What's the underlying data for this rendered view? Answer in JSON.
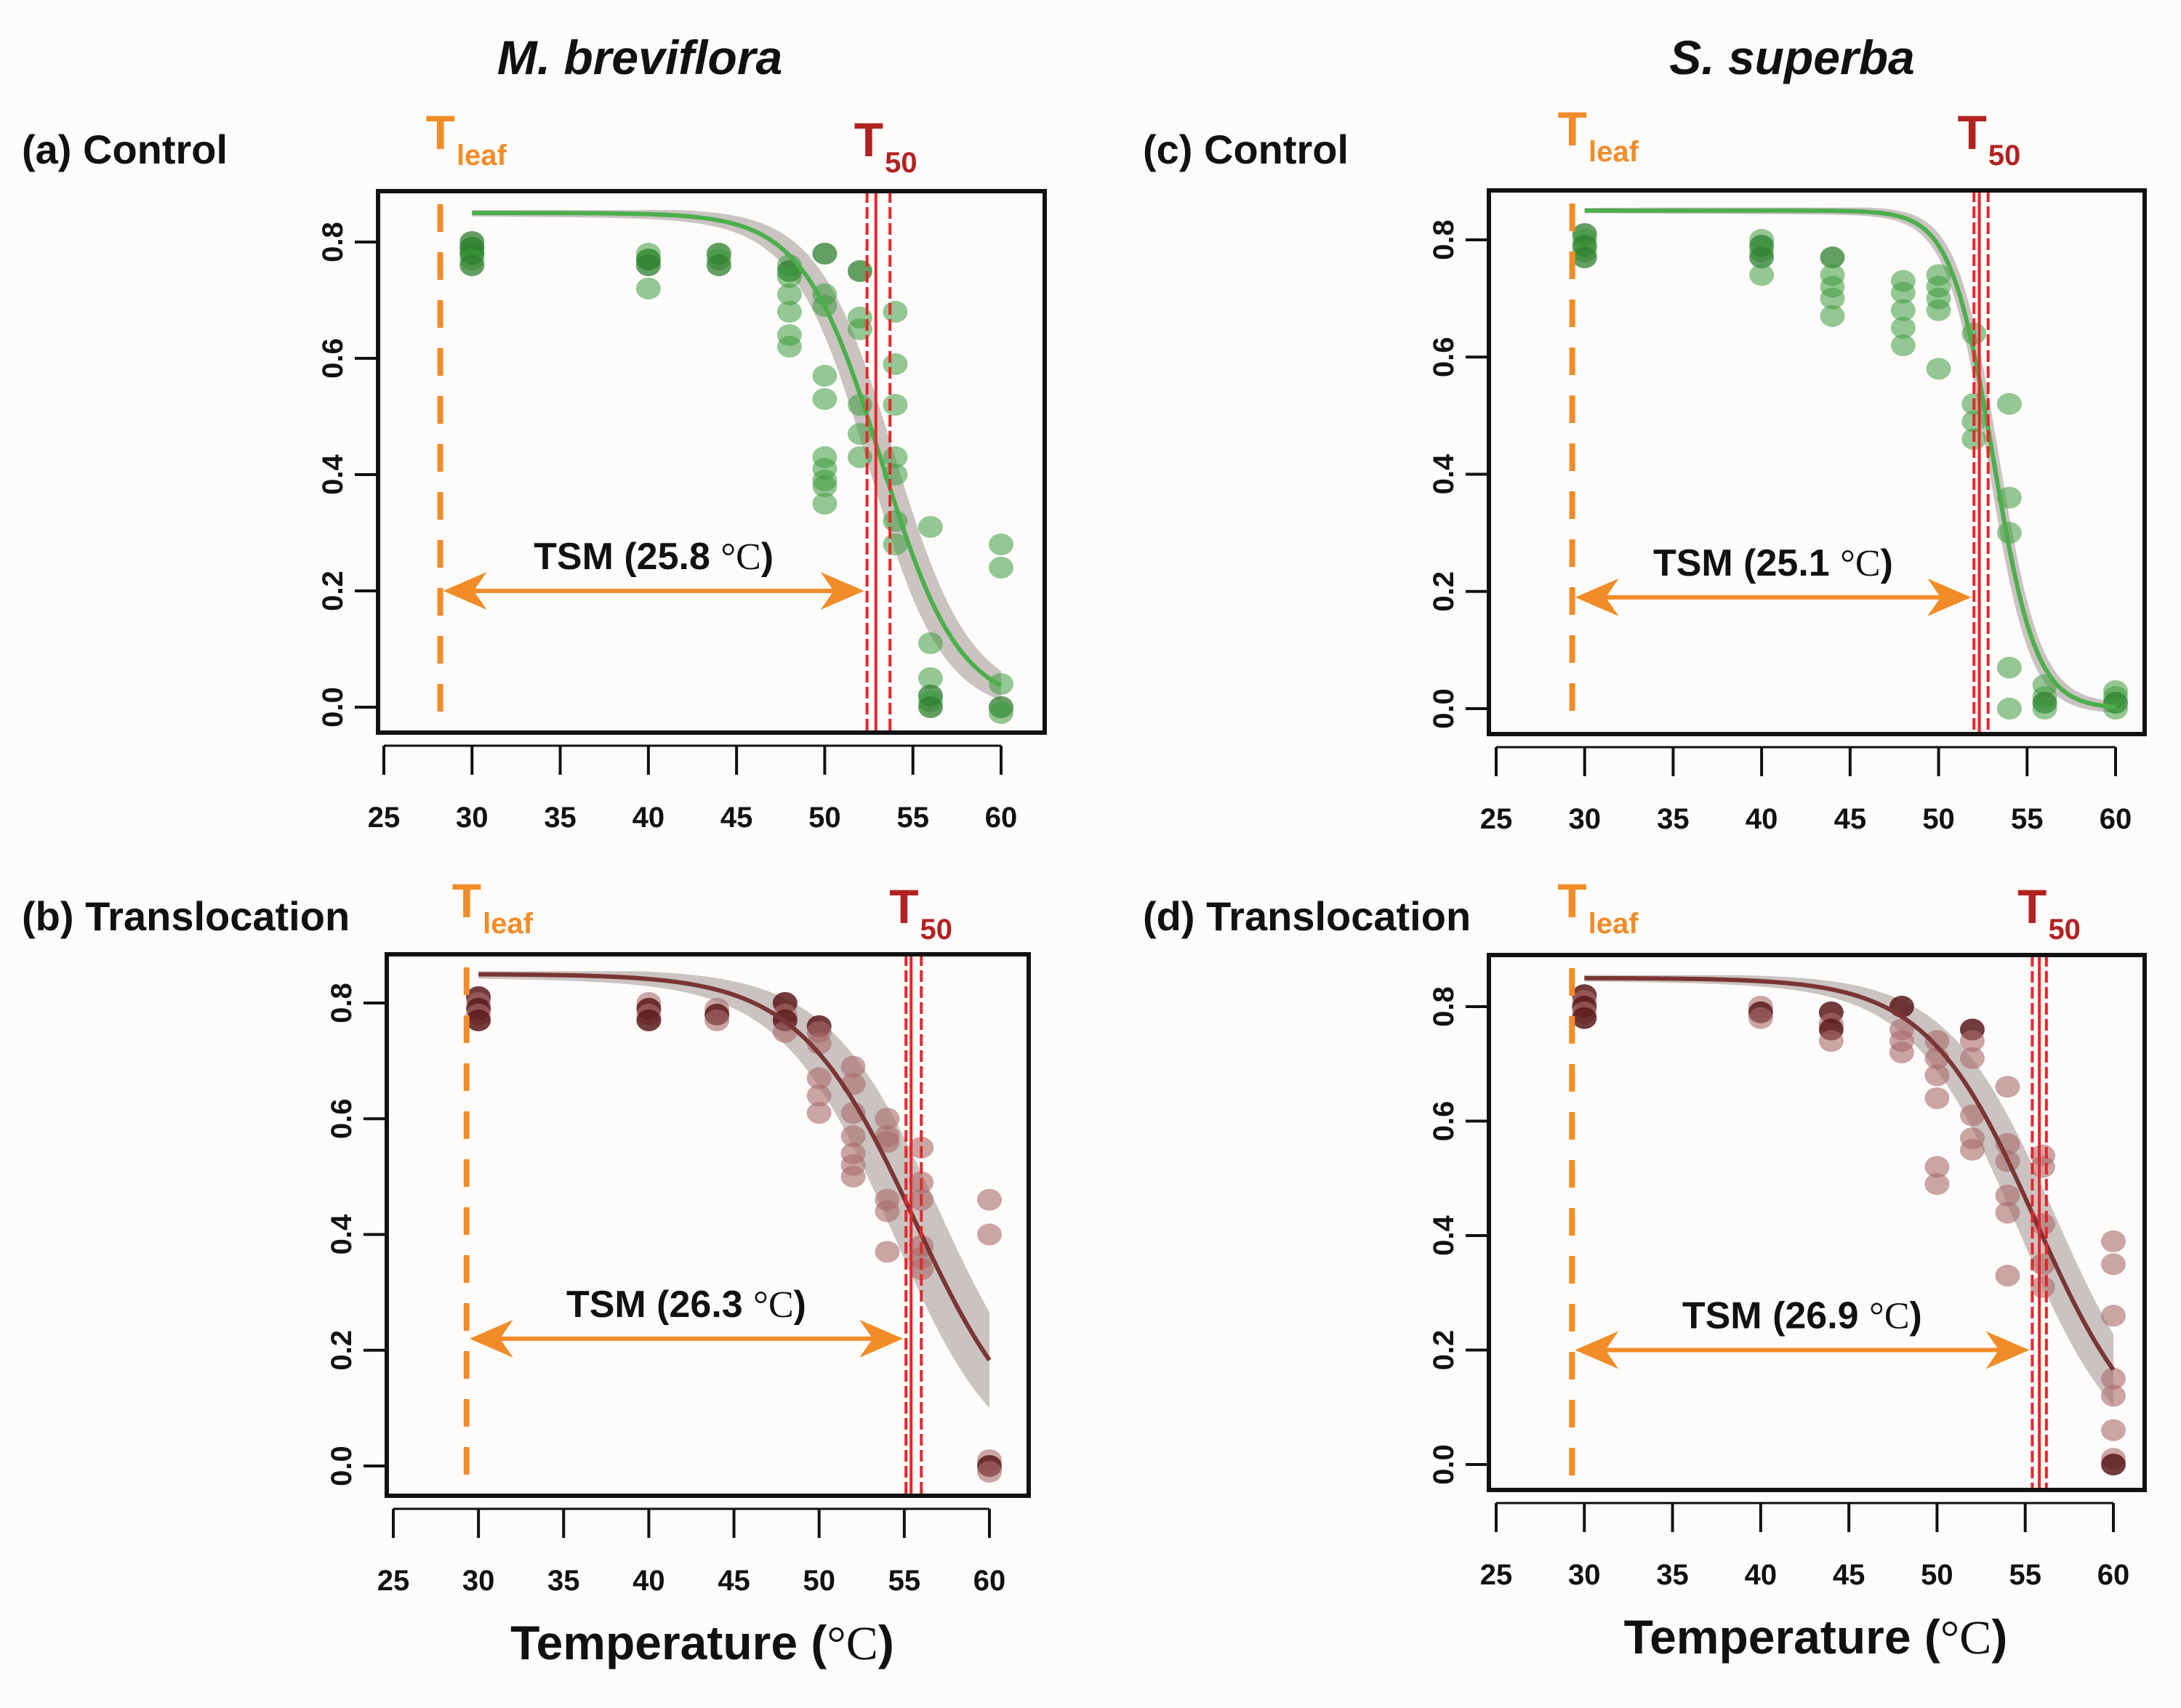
{
  "chart_data": [
    {
      "id": "a",
      "type": "scatter",
      "species": "M. breviflora",
      "panel_label": "(a) Control",
      "treatment": "Control",
      "xlabel": "",
      "ylabel": "",
      "xlim": [
        25,
        62
      ],
      "ylim": [
        -0.03,
        0.89
      ],
      "xticks": [
        25,
        30,
        35,
        40,
        45,
        50,
        55,
        60
      ],
      "yticks": [
        "0.0",
        "0.2",
        "0.4",
        "0.6",
        "0.8"
      ],
      "color_theme": "green",
      "t_leaf": 28.2,
      "t50": 52.9,
      "t50_ci": [
        52.4,
        53.7
      ],
      "tsm_label": "TSM (25.8 °C)",
      "tsm_value": 25.8,
      "tsm_arrow_y": 0.2,
      "curve": {
        "max": 0.85,
        "mid": 53.2,
        "scale": 2.2,
        "ci_width": 0.04
      },
      "points": [
        [
          30,
          0.8
        ],
        [
          30,
          0.79
        ],
        [
          30,
          0.79
        ],
        [
          30,
          0.78
        ],
        [
          30,
          0.78
        ],
        [
          30,
          0.77
        ],
        [
          30,
          0.76
        ],
        [
          40,
          0.78
        ],
        [
          40,
          0.77
        ],
        [
          40,
          0.77
        ],
        [
          40,
          0.76
        ],
        [
          40,
          0.72
        ],
        [
          44,
          0.78
        ],
        [
          44,
          0.77
        ],
        [
          44,
          0.76
        ],
        [
          48,
          0.76
        ],
        [
          48,
          0.75
        ],
        [
          48,
          0.74
        ],
        [
          48,
          0.71
        ],
        [
          48,
          0.68
        ],
        [
          48,
          0.64
        ],
        [
          48,
          0.62
        ],
        [
          50,
          0.78
        ],
        [
          50,
          0.71
        ],
        [
          50,
          0.69
        ],
        [
          50,
          0.57
        ],
        [
          50,
          0.53
        ],
        [
          50,
          0.43
        ],
        [
          50,
          0.41
        ],
        [
          50,
          0.39
        ],
        [
          50,
          0.38
        ],
        [
          50,
          0.35
        ],
        [
          52,
          0.75
        ],
        [
          52,
          0.67
        ],
        [
          52,
          0.65
        ],
        [
          52,
          0.52
        ],
        [
          52,
          0.47
        ],
        [
          52,
          0.43
        ],
        [
          54,
          0.68
        ],
        [
          54,
          0.59
        ],
        [
          54,
          0.52
        ],
        [
          54,
          0.43
        ],
        [
          54,
          0.4
        ],
        [
          54,
          0.32
        ],
        [
          54,
          0.28
        ],
        [
          56,
          0.31
        ],
        [
          56,
          0.11
        ],
        [
          56,
          0.05
        ],
        [
          56,
          0.02
        ],
        [
          56,
          0.01
        ],
        [
          56,
          0.0
        ],
        [
          60,
          0.28
        ],
        [
          60,
          0.24
        ],
        [
          60,
          0.04
        ],
        [
          60,
          0.0
        ],
        [
          60,
          -0.01
        ]
      ]
    },
    {
      "id": "b",
      "type": "scatter",
      "species": "M. breviflora",
      "panel_label": "(b) Translocation",
      "treatment": "Translocation",
      "xlabel": "Temperature (°C)",
      "ylabel": "",
      "xlim": [
        25,
        62
      ],
      "ylim": [
        -0.03,
        0.89
      ],
      "xticks": [
        25,
        30,
        35,
        40,
        45,
        50,
        55,
        60
      ],
      "yticks": [
        "0.0",
        "0.2",
        "0.4",
        "0.6",
        "0.8"
      ],
      "color_theme": "maroon",
      "t_leaf": 29.3,
      "t50": 55.4,
      "t50_ci": [
        55.1,
        56.0
      ],
      "tsm_label": "TSM (26.3 °C)",
      "tsm_value": 26.3,
      "tsm_arrow_y": 0.22,
      "curve": {
        "max": 0.85,
        "mid": 55.6,
        "scale": 3.4,
        "ci_width": 0.05
      },
      "points": [
        [
          30,
          0.81
        ],
        [
          30,
          0.8
        ],
        [
          30,
          0.79
        ],
        [
          30,
          0.78
        ],
        [
          30,
          0.77
        ],
        [
          40,
          0.8
        ],
        [
          40,
          0.79
        ],
        [
          40,
          0.78
        ],
        [
          40,
          0.77
        ],
        [
          44,
          0.79
        ],
        [
          44,
          0.78
        ],
        [
          44,
          0.77
        ],
        [
          48,
          0.8
        ],
        [
          48,
          0.78
        ],
        [
          48,
          0.77
        ],
        [
          48,
          0.75
        ],
        [
          50,
          0.76
        ],
        [
          50,
          0.75
        ],
        [
          50,
          0.73
        ],
        [
          50,
          0.67
        ],
        [
          50,
          0.64
        ],
        [
          50,
          0.61
        ],
        [
          52,
          0.69
        ],
        [
          52,
          0.66
        ],
        [
          52,
          0.61
        ],
        [
          52,
          0.57
        ],
        [
          52,
          0.54
        ],
        [
          52,
          0.52
        ],
        [
          52,
          0.5
        ],
        [
          54,
          0.6
        ],
        [
          54,
          0.57
        ],
        [
          54,
          0.56
        ],
        [
          54,
          0.46
        ],
        [
          54,
          0.44
        ],
        [
          54,
          0.37
        ],
        [
          56,
          0.55
        ],
        [
          56,
          0.49
        ],
        [
          56,
          0.46
        ],
        [
          56,
          0.38
        ],
        [
          56,
          0.36
        ],
        [
          56,
          0.34
        ],
        [
          60,
          0.46
        ],
        [
          60,
          0.4
        ],
        [
          60,
          0.01
        ],
        [
          60,
          0.0
        ],
        [
          60,
          -0.01
        ]
      ]
    },
    {
      "id": "c",
      "type": "scatter",
      "species": "S. superba",
      "panel_label": "(c) Control",
      "treatment": "Control",
      "xlabel": "",
      "ylabel": "",
      "xlim": [
        25,
        62
      ],
      "ylim": [
        -0.03,
        0.89
      ],
      "xticks": [
        25,
        30,
        35,
        40,
        45,
        50,
        55,
        60
      ],
      "yticks": [
        "0.0",
        "0.2",
        "0.4",
        "0.6",
        "0.8"
      ],
      "color_theme": "green",
      "t_leaf": 29.3,
      "t50": 52.3,
      "t50_ci": [
        52.0,
        52.8
      ],
      "tsm_label": "TSM (25.1 °C)",
      "tsm_value": 25.1,
      "tsm_arrow_y": 0.19,
      "curve": {
        "max": 0.85,
        "mid": 53.1,
        "scale": 1.2,
        "ci_width": 0.03
      },
      "points": [
        [
          30,
          0.81
        ],
        [
          30,
          0.8
        ],
        [
          30,
          0.79
        ],
        [
          30,
          0.78
        ],
        [
          30,
          0.77
        ],
        [
          40,
          0.8
        ],
        [
          40,
          0.79
        ],
        [
          40,
          0.78
        ],
        [
          40,
          0.77
        ],
        [
          40,
          0.74
        ],
        [
          44,
          0.77
        ],
        [
          44,
          0.74
        ],
        [
          44,
          0.72
        ],
        [
          44,
          0.7
        ],
        [
          44,
          0.67
        ],
        [
          48,
          0.73
        ],
        [
          48,
          0.71
        ],
        [
          48,
          0.68
        ],
        [
          48,
          0.65
        ],
        [
          48,
          0.62
        ],
        [
          50,
          0.74
        ],
        [
          50,
          0.72
        ],
        [
          50,
          0.7
        ],
        [
          50,
          0.68
        ],
        [
          50,
          0.58
        ],
        [
          52,
          0.64
        ],
        [
          52,
          0.52
        ],
        [
          52,
          0.49
        ],
        [
          52,
          0.46
        ],
        [
          54,
          0.52
        ],
        [
          54,
          0.36
        ],
        [
          54,
          0.3
        ],
        [
          54,
          0.07
        ],
        [
          54,
          0.0
        ],
        [
          56,
          0.04
        ],
        [
          56,
          0.02
        ],
        [
          56,
          0.01
        ],
        [
          56,
          0.0
        ],
        [
          60,
          0.03
        ],
        [
          60,
          0.02
        ],
        [
          60,
          0.01
        ],
        [
          60,
          0.0
        ]
      ]
    },
    {
      "id": "d",
      "type": "scatter",
      "species": "S. superba",
      "panel_label": "(d) Translocation",
      "treatment": "Translocation",
      "xlabel": "Temperature (°C)",
      "ylabel": "",
      "xlim": [
        25,
        62
      ],
      "ylim": [
        -0.03,
        0.89
      ],
      "xticks": [
        25,
        30,
        35,
        40,
        45,
        50,
        55,
        60
      ],
      "yticks": [
        "0.0",
        "0.2",
        "0.4",
        "0.6",
        "0.8"
      ],
      "color_theme": "maroon",
      "t_leaf": 29.3,
      "t50": 55.8,
      "t50_ci": [
        55.4,
        56.2
      ],
      "tsm_label": "TSM (26.9 °C)",
      "tsm_value": 26.9,
      "tsm_arrow_y": 0.2,
      "curve": {
        "max": 0.85,
        "mid": 55.6,
        "scale": 3.1,
        "ci_width": 0.04
      },
      "points": [
        [
          30,
          0.82
        ],
        [
          30,
          0.81
        ],
        [
          30,
          0.8
        ],
        [
          30,
          0.79
        ],
        [
          30,
          0.78
        ],
        [
          40,
          0.8
        ],
        [
          40,
          0.79
        ],
        [
          40,
          0.78
        ],
        [
          44,
          0.79
        ],
        [
          44,
          0.77
        ],
        [
          44,
          0.76
        ],
        [
          44,
          0.74
        ],
        [
          48,
          0.8
        ],
        [
          48,
          0.76
        ],
        [
          48,
          0.74
        ],
        [
          48,
          0.72
        ],
        [
          50,
          0.74
        ],
        [
          50,
          0.71
        ],
        [
          50,
          0.68
        ],
        [
          50,
          0.64
        ],
        [
          50,
          0.52
        ],
        [
          50,
          0.49
        ],
        [
          52,
          0.76
        ],
        [
          52,
          0.74
        ],
        [
          52,
          0.71
        ],
        [
          52,
          0.61
        ],
        [
          52,
          0.57
        ],
        [
          52,
          0.55
        ],
        [
          54,
          0.66
        ],
        [
          54,
          0.56
        ],
        [
          54,
          0.53
        ],
        [
          54,
          0.47
        ],
        [
          54,
          0.44
        ],
        [
          54,
          0.33
        ],
        [
          56,
          0.54
        ],
        [
          56,
          0.52
        ],
        [
          56,
          0.42
        ],
        [
          56,
          0.35
        ],
        [
          56,
          0.31
        ],
        [
          60,
          0.39
        ],
        [
          60,
          0.35
        ],
        [
          60,
          0.26
        ],
        [
          60,
          0.15
        ],
        [
          60,
          0.12
        ],
        [
          60,
          0.06
        ],
        [
          60,
          0.01
        ],
        [
          60,
          0.0
        ]
      ]
    }
  ],
  "figure": {
    "species_titles": [
      "M. breviflora",
      "S. superba"
    ],
    "t_leaf_label": {
      "main": "T",
      "sub": "leaf"
    },
    "t50_label": {
      "main": "T",
      "sub": "50"
    },
    "x_axis_title": "Temperature (°C)"
  },
  "colors": {
    "green_point": "#3e9a3e",
    "green_point_dark": "#2f7f2f",
    "green_line": "#4caf4c",
    "maroon_point": "#5a1a1a",
    "maroon_point_light": "#a86a6a",
    "maroon_line": "#7a3535",
    "ci_band": "#b8b0ae",
    "t_leaf": "#f28c28",
    "t50": "#b22222",
    "t50_line": "#e8262a",
    "arrow": "#f28c28",
    "axis": "#111111"
  }
}
